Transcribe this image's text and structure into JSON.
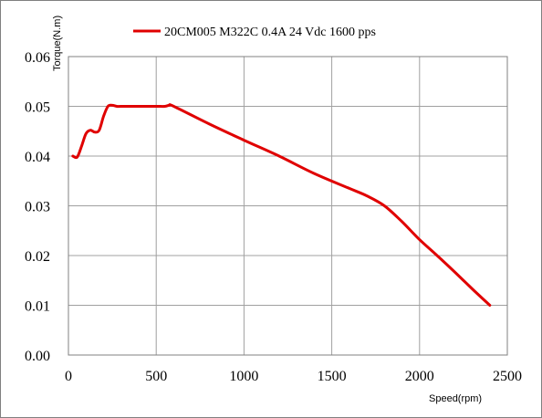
{
  "chart_data": {
    "type": "line",
    "title": "",
    "xlabel": "Speed(rpm)",
    "ylabel": "Torque(N.m)",
    "xlim": [
      0,
      2500
    ],
    "ylim": [
      0,
      0.06
    ],
    "x_ticks": [
      "0",
      "500",
      "1000",
      "1500",
      "2000",
      "2500"
    ],
    "x_tick_values": [
      0,
      500,
      1000,
      1500,
      2000,
      2500
    ],
    "y_ticks": [
      "0.00",
      "0.01",
      "0.02",
      "0.03",
      "0.04",
      "0.05",
      "0.06"
    ],
    "y_tick_values": [
      0,
      0.01,
      0.02,
      0.03,
      0.04,
      0.05,
      0.06
    ],
    "grid": true,
    "legend_position": "top-center",
    "series": [
      {
        "name": "20CM005 M322C 0.4A  24 Vdc  1600 pps",
        "color": "#e00000",
        "points": [
          [
            25,
            0.04
          ],
          [
            50,
            0.0398
          ],
          [
            75,
            0.042
          ],
          [
            100,
            0.0445
          ],
          [
            125,
            0.0452
          ],
          [
            150,
            0.0448
          ],
          [
            175,
            0.0452
          ],
          [
            200,
            0.048
          ],
          [
            225,
            0.05
          ],
          [
            250,
            0.0502
          ],
          [
            275,
            0.05
          ],
          [
            300,
            0.05
          ],
          [
            400,
            0.05
          ],
          [
            500,
            0.05
          ],
          [
            550,
            0.05
          ],
          [
            575,
            0.0502
          ],
          [
            600,
            0.05
          ],
          [
            800,
            0.0465
          ],
          [
            1000,
            0.0432
          ],
          [
            1200,
            0.04
          ],
          [
            1400,
            0.0365
          ],
          [
            1600,
            0.0335
          ],
          [
            1700,
            0.032
          ],
          [
            1800,
            0.03
          ],
          [
            1900,
            0.0268
          ],
          [
            2000,
            0.0232
          ],
          [
            2100,
            0.02
          ],
          [
            2200,
            0.0167
          ],
          [
            2300,
            0.0133
          ],
          [
            2400,
            0.01
          ]
        ]
      }
    ]
  }
}
